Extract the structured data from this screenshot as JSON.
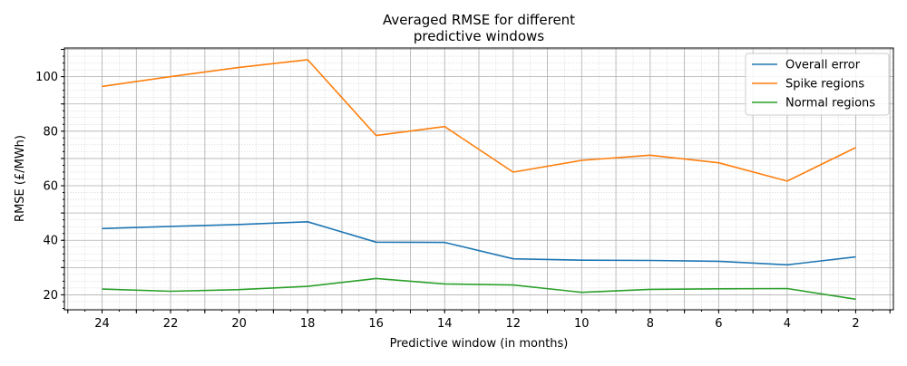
{
  "chart_data": {
    "type": "line",
    "title": "Averaged RMSE for different\npredictive windows",
    "xlabel": "Predictive window (in months)",
    "ylabel": "RMSE (£/MWh)",
    "x": [
      24,
      22,
      20,
      18,
      16,
      14,
      12,
      10,
      8,
      6,
      4,
      2
    ],
    "xticks": [
      24,
      22,
      20,
      18,
      16,
      14,
      12,
      10,
      8,
      6,
      4,
      2
    ],
    "yticks": [
      20,
      40,
      60,
      80,
      100
    ],
    "xlim": [
      25.1,
      0.9
    ],
    "ylim": [
      14.5,
      110.5
    ],
    "x_inverted": true,
    "grid": "major and minor",
    "legend_position": "upper right",
    "series": [
      {
        "name": "Overall error",
        "color": "#1f77b4",
        "values": [
          44.3,
          45.1,
          45.8,
          46.8,
          39.3,
          39.2,
          33.2,
          32.7,
          32.6,
          32.3,
          31.0,
          33.9
        ]
      },
      {
        "name": "Spike regions",
        "color": "#ff7f0e",
        "values": [
          96.4,
          100.0,
          103.4,
          106.2,
          78.4,
          81.7,
          65.0,
          69.3,
          71.2,
          68.4,
          61.7,
          74.0
        ]
      },
      {
        "name": "Normal regions",
        "color": "#2ca02c",
        "values": [
          22.1,
          21.3,
          21.9,
          23.1,
          26.0,
          24.0,
          23.6,
          20.9,
          22.0,
          22.2,
          22.3,
          18.4
        ]
      }
    ]
  }
}
